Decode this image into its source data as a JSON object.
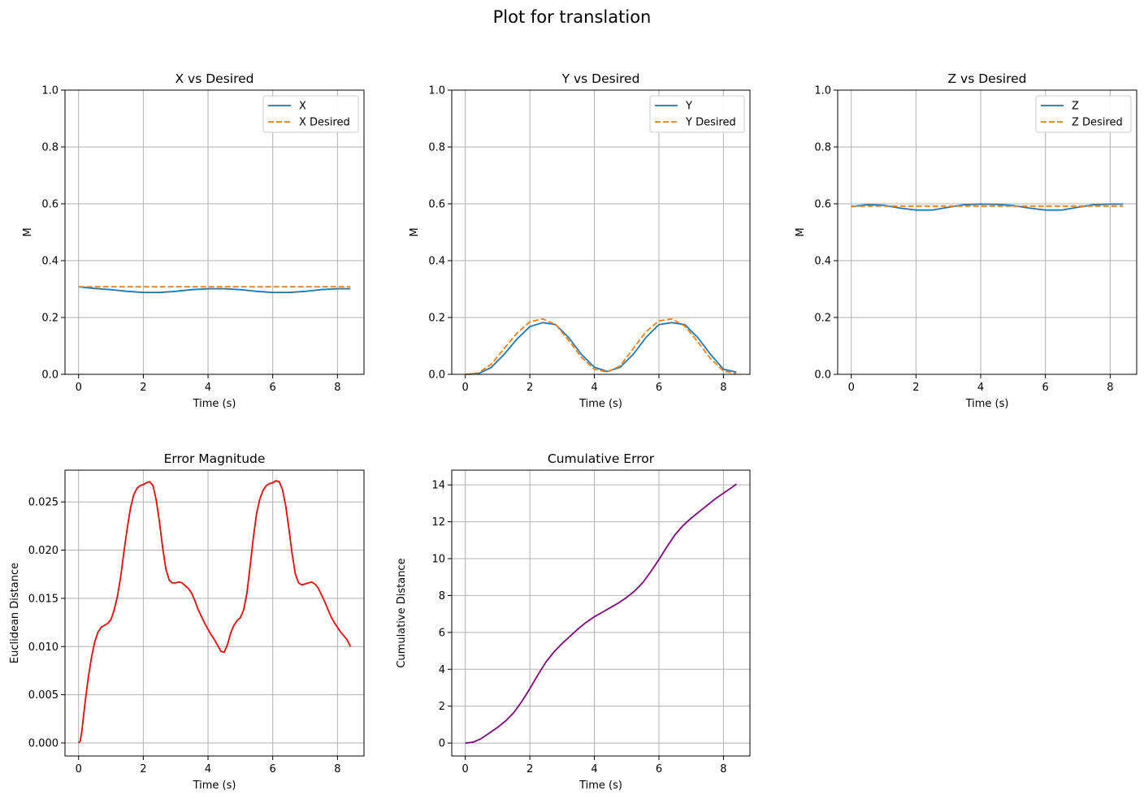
{
  "figure": {
    "title": "Plot for translation"
  },
  "colors": {
    "blue": "#1f77b4",
    "orange": "#ff7f0e",
    "red": "#ff0000",
    "purple": "#800080",
    "grid": "#b0b0b0"
  },
  "chart_data": [
    {
      "id": "x",
      "type": "line",
      "title": "X vs Desired",
      "xlabel": "Time (s)",
      "ylabel": "M",
      "xlim": [
        -0.42,
        8.82
      ],
      "ylim": [
        0,
        1
      ],
      "xticks": [
        0,
        2,
        4,
        6,
        8
      ],
      "yticks": [
        0.0,
        0.2,
        0.4,
        0.6,
        0.8,
        1.0
      ],
      "ytick_labels": [
        "0.0",
        "0.2",
        "0.4",
        "0.6",
        "0.8",
        "1.0"
      ],
      "grid": true,
      "legend": "top-right",
      "series": [
        {
          "name": "X",
          "color": "#1f77b4",
          "dash": false,
          "x": [
            0,
            0.5,
            1.0,
            1.5,
            2.0,
            2.5,
            3.0,
            3.5,
            4.0,
            4.5,
            5.0,
            5.5,
            6.0,
            6.5,
            7.0,
            7.5,
            8.0,
            8.4
          ],
          "y": [
            0.308,
            0.302,
            0.298,
            0.292,
            0.288,
            0.288,
            0.292,
            0.298,
            0.301,
            0.301,
            0.298,
            0.292,
            0.288,
            0.288,
            0.292,
            0.298,
            0.301,
            0.301
          ]
        },
        {
          "name": "X Desired",
          "color": "#ff7f0e",
          "dash": true,
          "x": [
            0,
            8.4
          ],
          "y": [
            0.308,
            0.308
          ]
        }
      ]
    },
    {
      "id": "y",
      "type": "line",
      "title": "Y vs Desired",
      "xlabel": "Time (s)",
      "ylabel": "M",
      "xlim": [
        -0.42,
        8.82
      ],
      "ylim": [
        0,
        1
      ],
      "xticks": [
        0,
        2,
        4,
        6,
        8
      ],
      "yticks": [
        0.0,
        0.2,
        0.4,
        0.6,
        0.8,
        1.0
      ],
      "ytick_labels": [
        "0.0",
        "0.2",
        "0.4",
        "0.6",
        "0.8",
        "1.0"
      ],
      "grid": true,
      "legend": "top-right",
      "series": [
        {
          "name": "Y",
          "color": "#1f77b4",
          "dash": false,
          "x": [
            0,
            0.4,
            0.8,
            1.2,
            1.6,
            2.0,
            2.4,
            2.8,
            3.2,
            3.6,
            4.0,
            4.4,
            4.8,
            5.2,
            5.6,
            6.0,
            6.4,
            6.8,
            7.2,
            7.6,
            8.0,
            8.4
          ],
          "y": [
            0.0,
            0.002,
            0.024,
            0.07,
            0.124,
            0.168,
            0.182,
            0.175,
            0.13,
            0.07,
            0.025,
            0.01,
            0.025,
            0.07,
            0.13,
            0.175,
            0.182,
            0.175,
            0.13,
            0.07,
            0.018,
            0.008
          ]
        },
        {
          "name": "Y Desired",
          "color": "#ff7f0e",
          "dash": true,
          "x": [
            0,
            0.4,
            0.8,
            1.2,
            1.6,
            2.0,
            2.4,
            2.8,
            3.2,
            3.6,
            4.0,
            4.4,
            4.8,
            5.2,
            5.6,
            6.0,
            6.4,
            6.8,
            7.2,
            7.6,
            8.0,
            8.4
          ],
          "y": [
            0.0,
            0.005,
            0.035,
            0.09,
            0.145,
            0.185,
            0.195,
            0.175,
            0.12,
            0.06,
            0.018,
            0.008,
            0.03,
            0.09,
            0.15,
            0.188,
            0.195,
            0.17,
            0.115,
            0.055,
            0.012,
            0.002
          ]
        }
      ]
    },
    {
      "id": "z",
      "type": "line",
      "title": "Z vs Desired",
      "xlabel": "Time (s)",
      "ylabel": "M",
      "xlim": [
        -0.42,
        8.82
      ],
      "ylim": [
        0,
        1
      ],
      "xticks": [
        0,
        2,
        4,
        6,
        8
      ],
      "yticks": [
        0.0,
        0.2,
        0.4,
        0.6,
        0.8,
        1.0
      ],
      "ytick_labels": [
        "0.0",
        "0.2",
        "0.4",
        "0.6",
        "0.8",
        "1.0"
      ],
      "grid": true,
      "legend": "top-right",
      "series": [
        {
          "name": "Z",
          "color": "#1f77b4",
          "dash": false,
          "x": [
            0,
            0.5,
            1.0,
            1.5,
            2.0,
            2.5,
            3.0,
            3.5,
            4.0,
            4.5,
            5.0,
            5.5,
            6.0,
            6.5,
            7.0,
            7.5,
            8.0,
            8.4
          ],
          "y": [
            0.59,
            0.597,
            0.595,
            0.585,
            0.578,
            0.578,
            0.588,
            0.597,
            0.599,
            0.598,
            0.594,
            0.585,
            0.578,
            0.578,
            0.588,
            0.597,
            0.599,
            0.599
          ]
        },
        {
          "name": "Z Desired",
          "color": "#ff7f0e",
          "dash": true,
          "x": [
            0,
            8.4
          ],
          "y": [
            0.592,
            0.592
          ]
        }
      ]
    },
    {
      "id": "err",
      "type": "line",
      "title": "Error Magnitude",
      "xlabel": "Time (s)",
      "ylabel": "Euclidean Distance",
      "xlim": [
        -0.42,
        8.82
      ],
      "ylim": [
        -0.00135,
        0.0283
      ],
      "xticks": [
        0,
        2,
        4,
        6,
        8
      ],
      "yticks": [
        0.0,
        0.005,
        0.01,
        0.015,
        0.02,
        0.025
      ],
      "ytick_labels": [
        "0.000",
        "0.005",
        "0.010",
        "0.015",
        "0.020",
        "0.025"
      ],
      "grid": true,
      "legend": "none",
      "series": [
        {
          "color": "#ff0000",
          "dash": false,
          "x": [
            0,
            0.05,
            0.1,
            0.2,
            0.3,
            0.4,
            0.5,
            0.6,
            0.7,
            0.8,
            0.9,
            1.0,
            1.1,
            1.2,
            1.3,
            1.4,
            1.5,
            1.6,
            1.7,
            1.8,
            1.9,
            2.0,
            2.1,
            2.2,
            2.3,
            2.4,
            2.5,
            2.6,
            2.7,
            2.8,
            2.9,
            3.0,
            3.1,
            3.2,
            3.3,
            3.4,
            3.5,
            3.6,
            3.7,
            3.8,
            3.9,
            4.0,
            4.1,
            4.2,
            4.3,
            4.4,
            4.5,
            4.6,
            4.7,
            4.8,
            4.9,
            5.0,
            5.1,
            5.2,
            5.3,
            5.4,
            5.5,
            5.6,
            5.7,
            5.8,
            5.9,
            6.0,
            6.1,
            6.2,
            6.3,
            6.4,
            6.5,
            6.6,
            6.7,
            6.8,
            6.9,
            7.0,
            7.1,
            7.2,
            7.3,
            7.4,
            7.5,
            7.6,
            7.7,
            7.8,
            7.9,
            8.0,
            8.1,
            8.2,
            8.3,
            8.4
          ],
          "y": [
            0.0,
            0.0002,
            0.0012,
            0.0042,
            0.0068,
            0.0089,
            0.0105,
            0.0115,
            0.012,
            0.0122,
            0.0124,
            0.0128,
            0.0138,
            0.0152,
            0.0172,
            0.0198,
            0.0222,
            0.0243,
            0.0257,
            0.0264,
            0.0267,
            0.0268,
            0.027,
            0.0271,
            0.0267,
            0.0252,
            0.0229,
            0.0202,
            0.018,
            0.0169,
            0.0166,
            0.0166,
            0.0167,
            0.0166,
            0.0163,
            0.016,
            0.0155,
            0.0147,
            0.0138,
            0.0131,
            0.0124,
            0.0118,
            0.0112,
            0.0107,
            0.0101,
            0.0095,
            0.0094,
            0.0102,
            0.0114,
            0.0122,
            0.0127,
            0.013,
            0.0138,
            0.0155,
            0.0183,
            0.0213,
            0.0238,
            0.0253,
            0.0262,
            0.0267,
            0.0269,
            0.027,
            0.0272,
            0.0271,
            0.0263,
            0.0246,
            0.0222,
            0.0196,
            0.0175,
            0.0166,
            0.0164,
            0.0165,
            0.0166,
            0.0167,
            0.0165,
            0.0161,
            0.0154,
            0.0147,
            0.0139,
            0.0131,
            0.0125,
            0.012,
            0.0115,
            0.0111,
            0.0107,
            0.01
          ]
        }
      ]
    },
    {
      "id": "cum",
      "type": "line",
      "title": "Cumulative Error",
      "xlabel": "Time (s)",
      "ylabel": "Cumulative Distance",
      "xlim": [
        -0.42,
        8.82
      ],
      "ylim": [
        -0.7,
        14.8
      ],
      "xticks": [
        0,
        2,
        4,
        6,
        8
      ],
      "yticks": [
        0,
        2,
        4,
        6,
        8,
        10,
        12,
        14
      ],
      "ytick_labels": [
        "0",
        "2",
        "4",
        "6",
        "8",
        "10",
        "12",
        "14"
      ],
      "grid": true,
      "legend": "none",
      "series": [
        {
          "color": "#800080",
          "dash": false,
          "x": [
            0,
            0.25,
            0.5,
            0.75,
            1.0,
            1.25,
            1.5,
            1.75,
            2.0,
            2.25,
            2.5,
            2.75,
            3.0,
            3.25,
            3.5,
            3.75,
            4.0,
            4.25,
            4.5,
            4.75,
            5.0,
            5.25,
            5.5,
            5.75,
            6.0,
            6.25,
            6.5,
            6.75,
            7.0,
            7.25,
            7.5,
            7.75,
            8.0,
            8.25,
            8.4
          ],
          "y": [
            0.0,
            0.05,
            0.25,
            0.55,
            0.85,
            1.2,
            1.65,
            2.25,
            2.95,
            3.7,
            4.4,
            4.95,
            5.4,
            5.8,
            6.2,
            6.55,
            6.85,
            7.1,
            7.35,
            7.6,
            7.9,
            8.25,
            8.7,
            9.3,
            9.95,
            10.65,
            11.3,
            11.8,
            12.2,
            12.55,
            12.9,
            13.25,
            13.55,
            13.85,
            14.05
          ]
        }
      ]
    }
  ]
}
